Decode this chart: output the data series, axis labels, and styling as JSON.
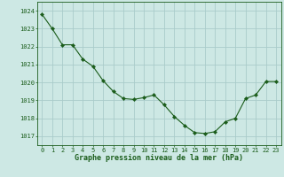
{
  "x": [
    0,
    1,
    2,
    3,
    4,
    5,
    6,
    7,
    8,
    9,
    10,
    11,
    12,
    13,
    14,
    15,
    16,
    17,
    18,
    19,
    20,
    21,
    22,
    23
  ],
  "y": [
    1023.8,
    1023.0,
    1022.1,
    1022.1,
    1021.3,
    1020.9,
    1020.1,
    1019.5,
    1019.1,
    1019.05,
    1019.15,
    1019.3,
    1018.75,
    1018.1,
    1017.6,
    1017.2,
    1017.15,
    1017.25,
    1017.8,
    1018.0,
    1019.1,
    1019.3,
    1020.05,
    1020.05
  ],
  "line_color": "#1a5c1a",
  "marker": "D",
  "marker_size": 2.2,
  "bg_color": "#cde8e4",
  "grid_color": "#aaccca",
  "xlabel": "Graphe pression niveau de la mer (hPa)",
  "xlabel_color": "#1a5c1a",
  "tick_color": "#1a5c1a",
  "ylim": [
    1016.5,
    1024.5
  ],
  "yticks": [
    1017,
    1018,
    1019,
    1020,
    1021,
    1022,
    1023,
    1024
  ],
  "xticks": [
    0,
    1,
    2,
    3,
    4,
    5,
    6,
    7,
    8,
    9,
    10,
    11,
    12,
    13,
    14,
    15,
    16,
    17,
    18,
    19,
    20,
    21,
    22,
    23
  ],
  "xlim": [
    -0.5,
    23.5
  ],
  "tick_fontsize": 5.0,
  "xlabel_fontsize": 6.0,
  "linewidth": 0.8
}
